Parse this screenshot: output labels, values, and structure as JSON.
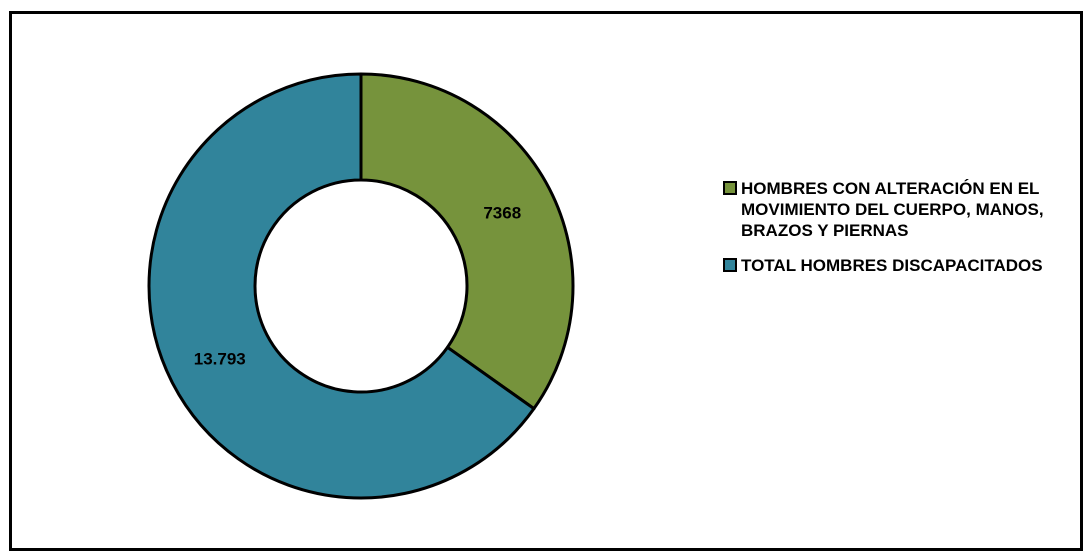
{
  "chart_data": {
    "type": "pie",
    "variant": "doughnut",
    "title": "",
    "start_angle": "top",
    "direction": "clockwise",
    "slices": [
      {
        "label": "HOMBRES CON ALTERACIÓN EN EL MOVIMIENTO DEL CUERPO, MANOS, BRAZOS Y PIERNAS",
        "value": 7368,
        "display_value": "7368",
        "color": "#76933C"
      },
      {
        "label": "TOTAL HOMBRES DISCAPACITADOS",
        "value": 13793,
        "display_value": "13.793",
        "color": "#31849B"
      }
    ],
    "legend_position": "right"
  }
}
